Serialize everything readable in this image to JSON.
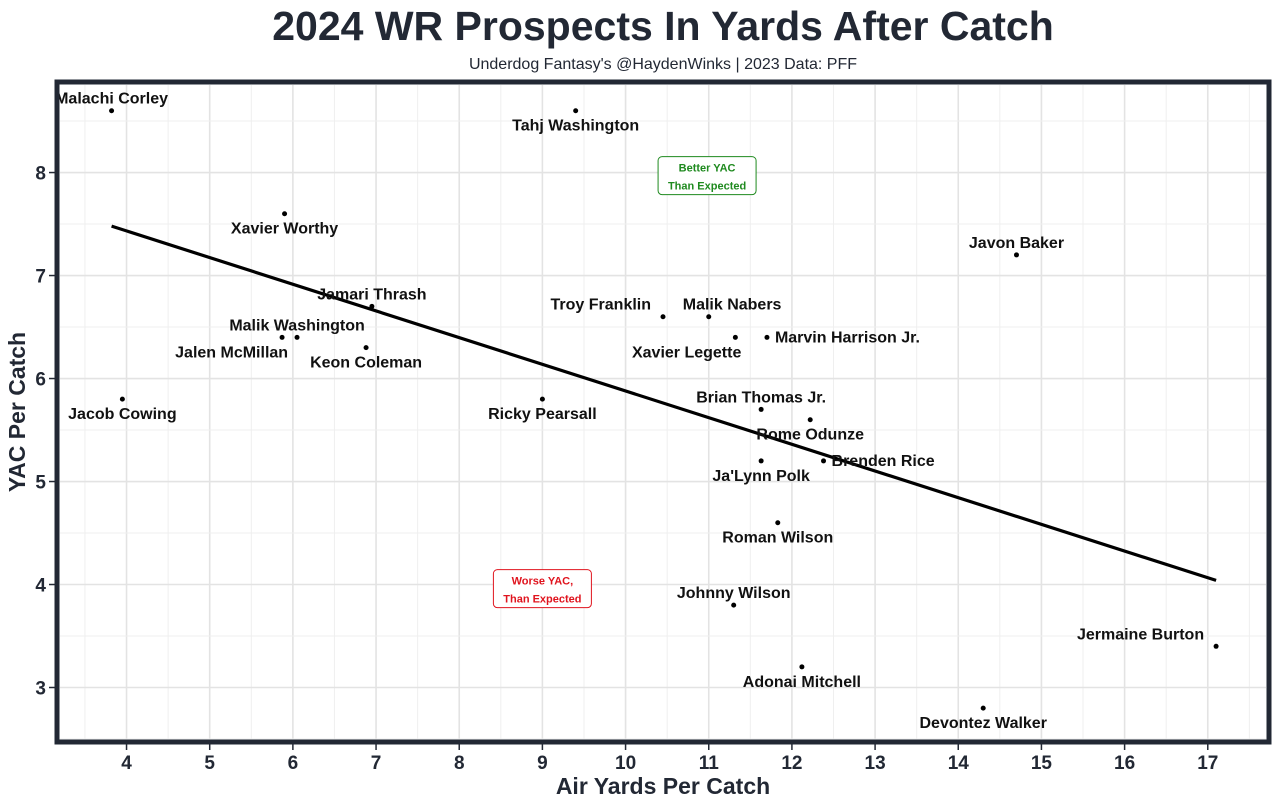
{
  "chart_data": {
    "type": "scatter",
    "title": "2024 WR Prospects In Yards After Catch",
    "subtitle": "Underdog Fantasy's @HaydenWinks | 2023 Data: PFF",
    "xlabel": "Air Yards Per Catch",
    "ylabel": "YAC Per Catch",
    "xlim": [
      3.2,
      17.7
    ],
    "ylim": [
      2.5,
      8.85
    ],
    "xticks": [
      4,
      5,
      6,
      7,
      8,
      9,
      10,
      11,
      12,
      13,
      14,
      15,
      16,
      17
    ],
    "yticks": [
      3,
      4,
      5,
      6,
      7,
      8
    ],
    "grid": true,
    "trendline": {
      "x": [
        3.82,
        17.1
      ],
      "y": [
        7.48,
        4.04
      ]
    },
    "points": [
      {
        "name": "Malachi Corley",
        "x": 3.82,
        "y": 8.6,
        "label_pos": "above"
      },
      {
        "name": "Tahj Washington",
        "x": 9.4,
        "y": 8.6,
        "label_pos": "below"
      },
      {
        "name": "Xavier Worthy",
        "x": 5.9,
        "y": 7.6,
        "label_pos": "below"
      },
      {
        "name": "Javon Baker",
        "x": 14.7,
        "y": 7.2,
        "label_pos": "above"
      },
      {
        "name": "Jamari Thrash",
        "x": 6.95,
        "y": 6.7,
        "label_pos": "above"
      },
      {
        "name": "Troy Franklin",
        "x": 10.45,
        "y": 6.6,
        "label_pos": "above-left"
      },
      {
        "name": "Malik Nabers",
        "x": 11.0,
        "y": 6.6,
        "label_pos": "above-right"
      },
      {
        "name": "Marvin Harrison Jr.",
        "x": 11.7,
        "y": 6.4,
        "label_pos": "right"
      },
      {
        "name": "Xavier Legette",
        "x": 11.32,
        "y": 6.4,
        "label_pos": "below-left"
      },
      {
        "name": "Malik Washington",
        "x": 6.05,
        "y": 6.4,
        "label_pos": "above"
      },
      {
        "name": "Jalen McMillan",
        "x": 5.87,
        "y": 6.4,
        "label_pos": "below-left"
      },
      {
        "name": "Keon Coleman",
        "x": 6.88,
        "y": 6.3,
        "label_pos": "below"
      },
      {
        "name": "Jacob Cowing",
        "x": 3.95,
        "y": 5.8,
        "label_pos": "below"
      },
      {
        "name": "Ricky Pearsall",
        "x": 9.0,
        "y": 5.8,
        "label_pos": "below"
      },
      {
        "name": "Brian Thomas Jr.",
        "x": 11.63,
        "y": 5.7,
        "label_pos": "above"
      },
      {
        "name": "Rome Odunze",
        "x": 12.22,
        "y": 5.6,
        "label_pos": "below"
      },
      {
        "name": "Brenden Rice",
        "x": 12.38,
        "y": 5.2,
        "label_pos": "right"
      },
      {
        "name": "Ja'Lynn Polk",
        "x": 11.63,
        "y": 5.2,
        "label_pos": "below"
      },
      {
        "name": "Roman Wilson",
        "x": 11.83,
        "y": 4.6,
        "label_pos": "below"
      },
      {
        "name": "Johnny Wilson",
        "x": 11.3,
        "y": 3.8,
        "label_pos": "above"
      },
      {
        "name": "Jermaine Burton",
        "x": 17.1,
        "y": 3.4,
        "label_pos": "above-left"
      },
      {
        "name": "Adonai Mitchell",
        "x": 12.12,
        "y": 3.2,
        "label_pos": "below"
      },
      {
        "name": "Devontez Walker",
        "x": 14.3,
        "y": 2.8,
        "label_pos": "below"
      }
    ],
    "annotations": [
      {
        "id": "better",
        "lines": [
          "Better YAC",
          "Than Expected"
        ],
        "x": 10.98,
        "y": 7.97,
        "color": "#1f8a1f"
      },
      {
        "id": "worse",
        "lines": [
          "Worse YAC,",
          "Than Expected"
        ],
        "x": 9.0,
        "y": 3.96,
        "color": "#e0141e"
      }
    ]
  }
}
